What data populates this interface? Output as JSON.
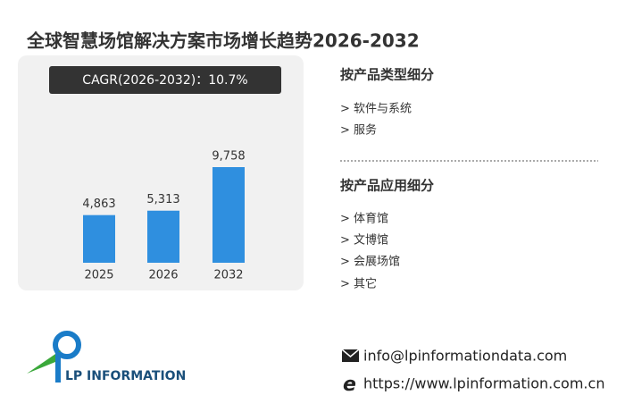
{
  "header": {
    "title": "全球智慧场馆解决方案市场增长趋势2026-2032"
  },
  "chart_data": {
    "type": "bar",
    "annotation": "CAGR(2026-2032)：10.7%",
    "categories": [
      "2025",
      "2026",
      "2032"
    ],
    "values": [
      4863,
      5313,
      9758
    ],
    "value_labels": [
      "4,863",
      "5,313",
      "9,758"
    ],
    "color": "#2f8fdf"
  },
  "segments": [
    {
      "heading": "按产品类型细分",
      "items": [
        "> 软件与系统",
        "> 服务"
      ]
    },
    {
      "heading": "按产品应用细分",
      "items": [
        "> 体育馆",
        "> 文博馆",
        "> 会展场馆",
        "> 其它"
      ]
    }
  ],
  "logo": {
    "text": "LP INFORMATION"
  },
  "contact": {
    "email": "info@lpinformationdata.com",
    "website": "https://www.lpinformation.com.cn"
  }
}
